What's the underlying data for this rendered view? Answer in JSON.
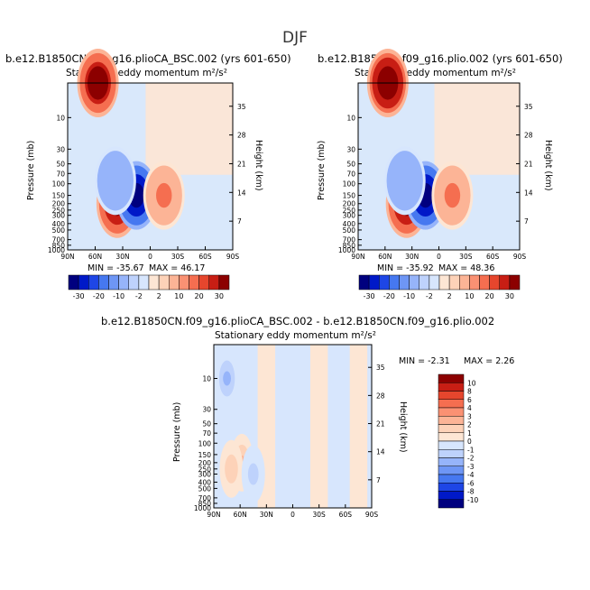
{
  "page": {
    "title": "DJF"
  },
  "colors": {
    "neg": [
      "#00007f",
      "#0019c8",
      "#1e46e6",
      "#4678f0",
      "#6e96f5",
      "#96b4fa",
      "#bed2fc",
      "#d7e6fd"
    ],
    "pos": [
      "#fde6d4",
      "#fdd2b8",
      "#fcb496",
      "#fa9173",
      "#f56e50",
      "#e6462d",
      "#c81e14",
      "#8c0000"
    ]
  },
  "chart_data": [
    {
      "type": "heatmap",
      "title": "b.e12.B1850CN.f09_g16.plioCA_BSC.002 (yrs 601-650)",
      "subtitle": "Stationary eddy momentum",
      "units": "m²/s²",
      "xlabel": "",
      "ylabel": "Pressure (mb)",
      "ylabel_right": "Height (km)",
      "x_ticks": [
        "90N",
        "60N",
        "30N",
        "0",
        "30S",
        "60S",
        "90S"
      ],
      "y_ticks": [
        "10",
        "30",
        "50",
        "70",
        "100",
        "150",
        "200",
        "250",
        "300",
        "400",
        "500",
        "700",
        "850",
        "1000"
      ],
      "y_right_ticks": [
        "35",
        "28",
        "21",
        "14",
        "7"
      ],
      "min_text": "MIN = -35.67",
      "max_text": "MAX = 46.17",
      "colorbar_labels": [
        "-30",
        "-20",
        "-10",
        "-2",
        "2",
        "10",
        "20",
        "30"
      ],
      "features": [
        {
          "lat": 57,
          "p": 3,
          "value": 46
        },
        {
          "lat": 36,
          "p": 200,
          "value": 35
        },
        {
          "lat": 15,
          "p": 150,
          "value": -35
        },
        {
          "lat": -15,
          "p": 150,
          "value": 12
        },
        {
          "lat": 38,
          "p": 90,
          "value": -8
        }
      ]
    },
    {
      "type": "heatmap",
      "title": "b.e12.B1850CN.f09_g16.plio.002 (yrs 601-650)",
      "subtitle": "Stationary eddy momentum",
      "units": "m²/s²",
      "xlabel": "",
      "ylabel": "Pressure (mb)",
      "ylabel_right": "Height (km)",
      "x_ticks": [
        "90N",
        "60N",
        "30N",
        "0",
        "30S",
        "60S",
        "90S"
      ],
      "y_ticks": [
        "10",
        "30",
        "50",
        "70",
        "100",
        "150",
        "200",
        "250",
        "300",
        "400",
        "500",
        "700",
        "850",
        "1000"
      ],
      "y_right_ticks": [
        "35",
        "28",
        "21",
        "14",
        "7"
      ],
      "min_text": "MIN = -35.92",
      "max_text": "MAX = 48.36",
      "colorbar_labels": [
        "-30",
        "-20",
        "-10",
        "-2",
        "2",
        "10",
        "20",
        "30"
      ],
      "features": [
        {
          "lat": 57,
          "p": 3,
          "value": 48
        },
        {
          "lat": 36,
          "p": 200,
          "value": 36
        },
        {
          "lat": 15,
          "p": 150,
          "value": -36
        },
        {
          "lat": -15,
          "p": 150,
          "value": 12
        },
        {
          "lat": 38,
          "p": 90,
          "value": -8
        }
      ]
    },
    {
      "type": "heatmap",
      "title": "b.e12.B1850CN.f09_g16.plioCA_BSC.002 - b.e12.B1850CN.f09_g16.plio.002",
      "subtitle": "Stationary eddy momentum",
      "units": "m²/s²",
      "xlabel": "",
      "ylabel": "Pressure (mb)",
      "ylabel_right": "Height (km)",
      "x_ticks": [
        "90N",
        "60N",
        "30N",
        "0",
        "30S",
        "60S",
        "90S"
      ],
      "y_ticks": [
        "10",
        "30",
        "50",
        "70",
        "100",
        "150",
        "200",
        "250",
        "300",
        "400",
        "500",
        "700",
        "850",
        "1000"
      ],
      "y_right_ticks": [
        "35",
        "28",
        "21",
        "14",
        "7"
      ],
      "min_text": "MIN = -2.31",
      "max_text": "MAX = 2.26",
      "colorbar_labels": [
        "10",
        "8",
        "6",
        "4",
        "3",
        "2",
        "1",
        "0",
        "-1",
        "-2",
        "-3",
        "-4",
        "-6",
        "-8",
        "-10"
      ],
      "features": [
        {
          "lat": 75,
          "p": 10,
          "value": -2.3
        },
        {
          "lat": 58,
          "p": 200,
          "value": 2.2
        },
        {
          "lat": 70,
          "p": 250,
          "value": 1.5
        },
        {
          "lat": 45,
          "p": 300,
          "value": -1.2
        }
      ]
    }
  ]
}
